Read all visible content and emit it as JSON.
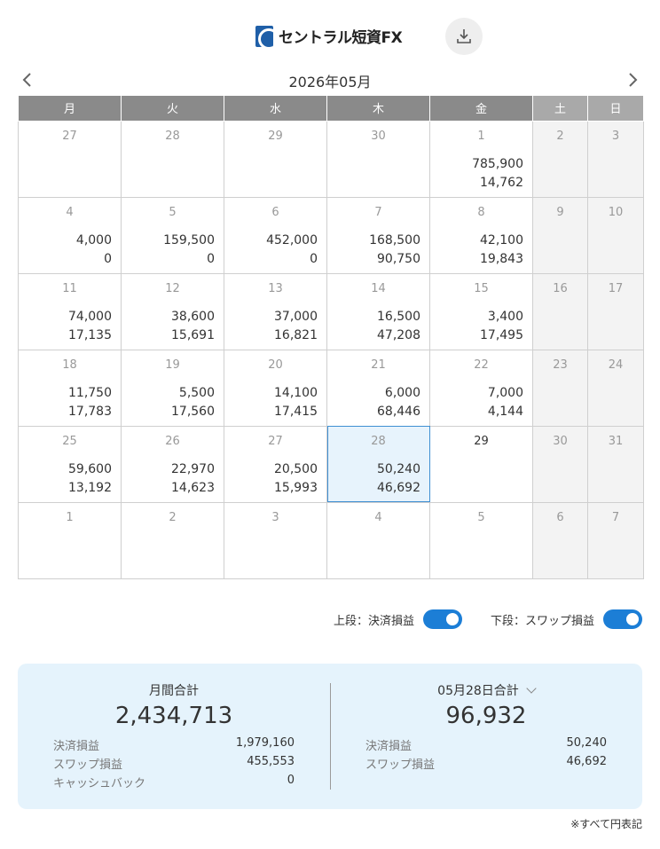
{
  "header": {
    "logo_text": "セントラル短資FX",
    "download_icon": "download-icon"
  },
  "calendar": {
    "month_label": "2026年05月",
    "weekdays": [
      "月",
      "火",
      "水",
      "木",
      "金",
      "土",
      "日"
    ],
    "weeks": [
      [
        {
          "day": "27",
          "v1": "",
          "v2": ""
        },
        {
          "day": "28",
          "v1": "",
          "v2": ""
        },
        {
          "day": "29",
          "v1": "",
          "v2": ""
        },
        {
          "day": "30",
          "v1": "",
          "v2": ""
        },
        {
          "day": "1",
          "v1": "785,900",
          "v2": "14,762"
        },
        {
          "day": "2",
          "v1": "",
          "v2": ""
        },
        {
          "day": "3",
          "v1": "",
          "v2": ""
        }
      ],
      [
        {
          "day": "4",
          "v1": "4,000",
          "v2": "0"
        },
        {
          "day": "5",
          "v1": "159,500",
          "v2": "0"
        },
        {
          "day": "6",
          "v1": "452,000",
          "v2": "0"
        },
        {
          "day": "7",
          "v1": "168,500",
          "v2": "90,750"
        },
        {
          "day": "8",
          "v1": "42,100",
          "v2": "19,843"
        },
        {
          "day": "9",
          "v1": "",
          "v2": ""
        },
        {
          "day": "10",
          "v1": "",
          "v2": ""
        }
      ],
      [
        {
          "day": "11",
          "v1": "74,000",
          "v2": "17,135"
        },
        {
          "day": "12",
          "v1": "38,600",
          "v2": "15,691"
        },
        {
          "day": "13",
          "v1": "37,000",
          "v2": "16,821"
        },
        {
          "day": "14",
          "v1": "16,500",
          "v2": "47,208"
        },
        {
          "day": "15",
          "v1": "3,400",
          "v2": "17,495"
        },
        {
          "day": "16",
          "v1": "",
          "v2": ""
        },
        {
          "day": "17",
          "v1": "",
          "v2": ""
        }
      ],
      [
        {
          "day": "18",
          "v1": "11,750",
          "v2": "17,783"
        },
        {
          "day": "19",
          "v1": "5,500",
          "v2": "17,560"
        },
        {
          "day": "20",
          "v1": "14,100",
          "v2": "17,415"
        },
        {
          "day": "21",
          "v1": "6,000",
          "v2": "68,446"
        },
        {
          "day": "22",
          "v1": "7,000",
          "v2": "4,144"
        },
        {
          "day": "23",
          "v1": "",
          "v2": ""
        },
        {
          "day": "24",
          "v1": "",
          "v2": ""
        }
      ],
      [
        {
          "day": "25",
          "v1": "59,600",
          "v2": "13,192"
        },
        {
          "day": "26",
          "v1": "22,970",
          "v2": "14,623"
        },
        {
          "day": "27",
          "v1": "20,500",
          "v2": "15,993"
        },
        {
          "day": "28",
          "v1": "50,240",
          "v2": "46,692"
        },
        {
          "day": "29",
          "v1": "",
          "v2": ""
        },
        {
          "day": "30",
          "v1": "",
          "v2": ""
        },
        {
          "day": "31",
          "v1": "",
          "v2": ""
        }
      ],
      [
        {
          "day": "1",
          "v1": "",
          "v2": ""
        },
        {
          "day": "2",
          "v1": "",
          "v2": ""
        },
        {
          "day": "3",
          "v1": "",
          "v2": ""
        },
        {
          "day": "4",
          "v1": "",
          "v2": ""
        },
        {
          "day": "5",
          "v1": "",
          "v2": ""
        },
        {
          "day": "6",
          "v1": "",
          "v2": ""
        },
        {
          "day": "7",
          "v1": "",
          "v2": ""
        }
      ]
    ]
  },
  "toggles": {
    "upper_label": "上段：決済損益",
    "upper_on": true,
    "lower_label": "下段：スワップ損益",
    "lower_on": true
  },
  "summary": {
    "monthly": {
      "title": "月間合計",
      "total": "2,434,713",
      "rows": [
        {
          "label": "決済損益",
          "value": "1,979,160"
        },
        {
          "label": "スワップ損益",
          "value": "455,553"
        },
        {
          "label": "キャッシュバック",
          "value": "0"
        }
      ]
    },
    "daily": {
      "title": "05月28日合計",
      "total": "96,932",
      "rows": [
        {
          "label": "決済損益",
          "value": "50,240"
        },
        {
          "label": "スワップ損益",
          "value": "46,692"
        }
      ]
    }
  },
  "footnote": "※すべて円表記",
  "colors": {
    "accent": "#1c7ed6",
    "header_weekday": "#8a8a8a",
    "header_weekend": "#a9a9a9",
    "summary_bg": "#e5f3fc",
    "selected_bg": "#e7f3fc"
  }
}
